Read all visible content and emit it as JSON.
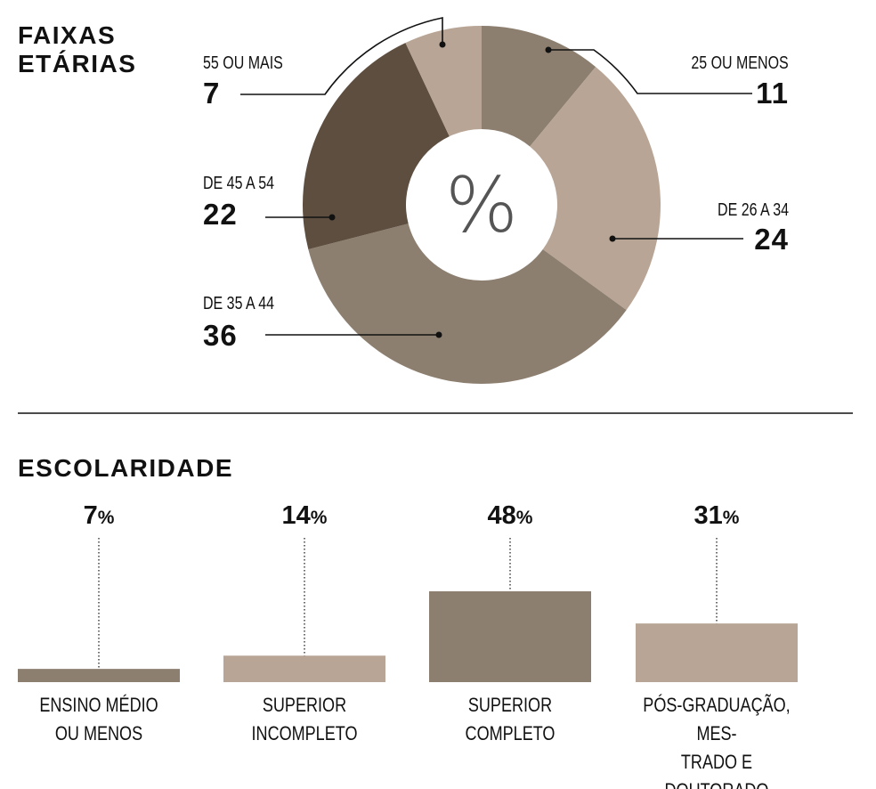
{
  "chart_data": [
    {
      "type": "pie",
      "title": "FAIXAS ETÁRIAS",
      "center_label": "%",
      "categories": [
        "25 OU MENOS",
        "DE 26 A 34",
        "DE 35 A 44",
        "DE 45 A 54",
        "55 OU MAIS"
      ],
      "values": [
        11,
        24,
        36,
        22,
        7
      ],
      "colors": [
        "#8c7f70",
        "#b8a595",
        "#8c7f70",
        "#5e4e40",
        "#b8a595"
      ]
    },
    {
      "type": "bar",
      "title": "ESCOLARIDADE",
      "categories": [
        [
          "ENSINO MÉDIO",
          "OU MENOS"
        ],
        [
          "SUPERIOR",
          "INCOMPLETO"
        ],
        [
          "SUPERIOR",
          "COMPLETO"
        ],
        [
          "PÓS-GRADUAÇÃO, MES-",
          "TRADO E DOUTORADO"
        ]
      ],
      "values": [
        7,
        14,
        48,
        31
      ],
      "unit": "%",
      "colors": [
        "#8c7f70",
        "#b8a595",
        "#8c7f70",
        "#b8a595"
      ],
      "ylim": [
        0,
        48
      ]
    }
  ]
}
